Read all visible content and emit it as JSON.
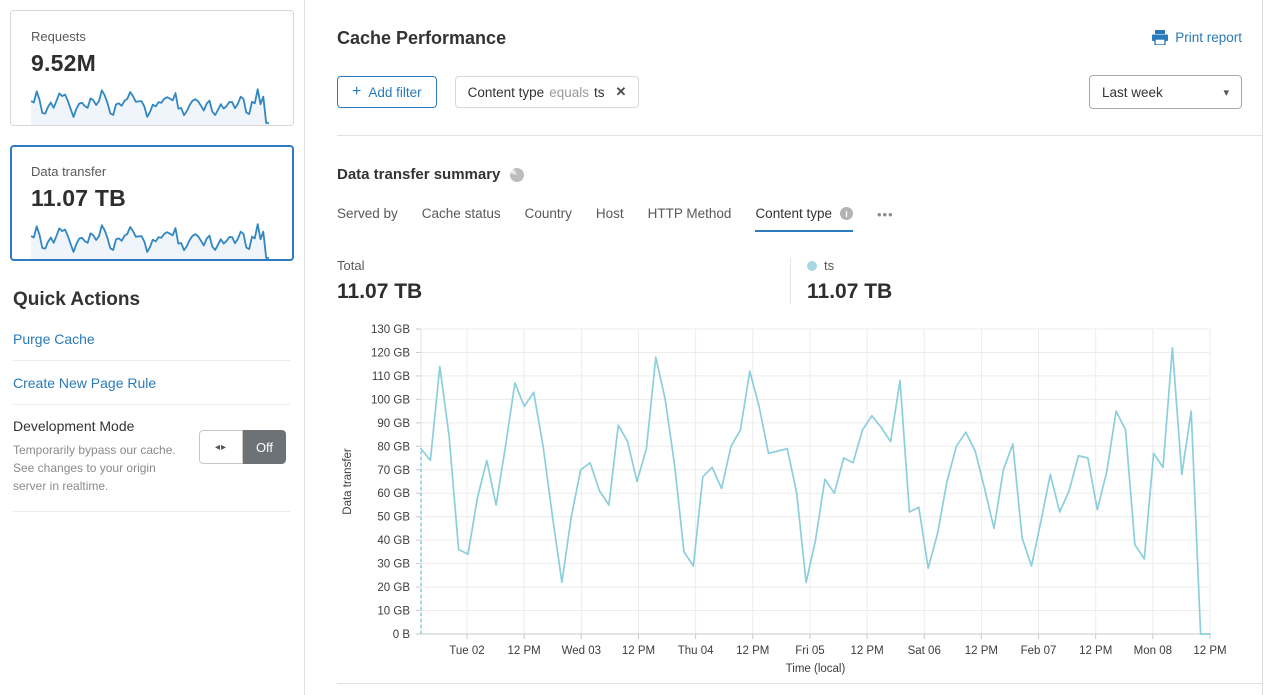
{
  "sidebar": {
    "cards": [
      {
        "label": "Requests",
        "value": "9.52M"
      },
      {
        "label": "Data transfer",
        "value": "11.07 TB",
        "selected": true
      }
    ],
    "quick_actions": {
      "title": "Quick Actions",
      "links": [
        "Purge Cache",
        "Create New Page Rule"
      ],
      "dev_mode": {
        "title": "Development Mode",
        "description": "Temporarily bypass our cache. See changes to your origin server in realtime.",
        "toggle_state": "Off"
      }
    }
  },
  "header": {
    "title": "Cache Performance",
    "print_label": "Print report",
    "time_range": "Last week"
  },
  "filters": {
    "add_label": "Add filter",
    "chips": [
      {
        "field": "Content type",
        "operator": "equals",
        "value": "ts"
      }
    ]
  },
  "summary": {
    "title": "Data transfer summary",
    "tabs": [
      {
        "label": "Served by"
      },
      {
        "label": "Cache status"
      },
      {
        "label": "Country"
      },
      {
        "label": "Host"
      },
      {
        "label": "HTTP Method"
      },
      {
        "label": "Content type",
        "active": true,
        "info": true
      }
    ],
    "total_label": "Total",
    "total_value": "11.07 TB",
    "legend": [
      {
        "name": "ts",
        "value": "11.07 TB",
        "color": "#a5d8e2"
      }
    ]
  },
  "icons": {
    "plus": "+",
    "close": "✕",
    "caret": "▾",
    "more": "•••",
    "toggle_arrows": "◂▸"
  },
  "colors": {
    "accent_blue": "#2f7bbf",
    "link_blue": "#2a7ab9",
    "chart_line": "#8ccfdc",
    "sparkline": "#3287c1",
    "legend_dot": "#a5d8e2"
  },
  "chart_data": {
    "type": "line",
    "xlabel": "Time (local)",
    "ylabel": "Data transfer",
    "ylim": [
      0,
      130
    ],
    "unit": "GB",
    "grid": true,
    "legend_position": "above-right",
    "y_ticks": [
      "0 B",
      "10 GB",
      "20 GB",
      "30 GB",
      "40 GB",
      "50 GB",
      "60 GB",
      "70 GB",
      "80 GB",
      "90 GB",
      "100 GB",
      "110 GB",
      "120 GB",
      "130 GB"
    ],
    "x_ticks": [
      "Tue 02",
      "12 PM",
      "Wed 03",
      "12 PM",
      "Thu 04",
      "12 PM",
      "Fri 05",
      "12 PM",
      "Sat 06",
      "12 PM",
      "Feb 07",
      "12 PM",
      "Mon 08",
      "12 PM"
    ],
    "leading_dashed": true,
    "series": [
      {
        "name": "ts",
        "color": "#8ccfdc",
        "values_unit": "GB",
        "values": [
          79,
          74,
          114,
          84,
          36,
          34,
          58,
          74,
          55,
          80,
          107,
          97,
          103,
          80,
          50,
          22,
          50,
          70,
          73,
          61,
          55,
          89,
          82,
          65,
          79,
          118,
          100,
          72,
          35,
          29,
          67,
          71,
          62,
          80,
          87,
          112,
          97,
          77,
          78,
          79,
          60,
          22,
          40,
          66,
          60,
          75,
          73,
          87,
          93,
          88,
          82,
          108,
          52,
          54,
          28,
          43,
          65,
          80,
          86,
          78,
          62,
          45,
          70,
          81,
          41,
          29,
          48,
          68,
          52,
          61,
          76,
          75,
          53,
          69,
          95,
          87,
          38,
          32,
          77,
          71,
          122,
          68,
          95,
          0,
          0
        ]
      }
    ]
  }
}
